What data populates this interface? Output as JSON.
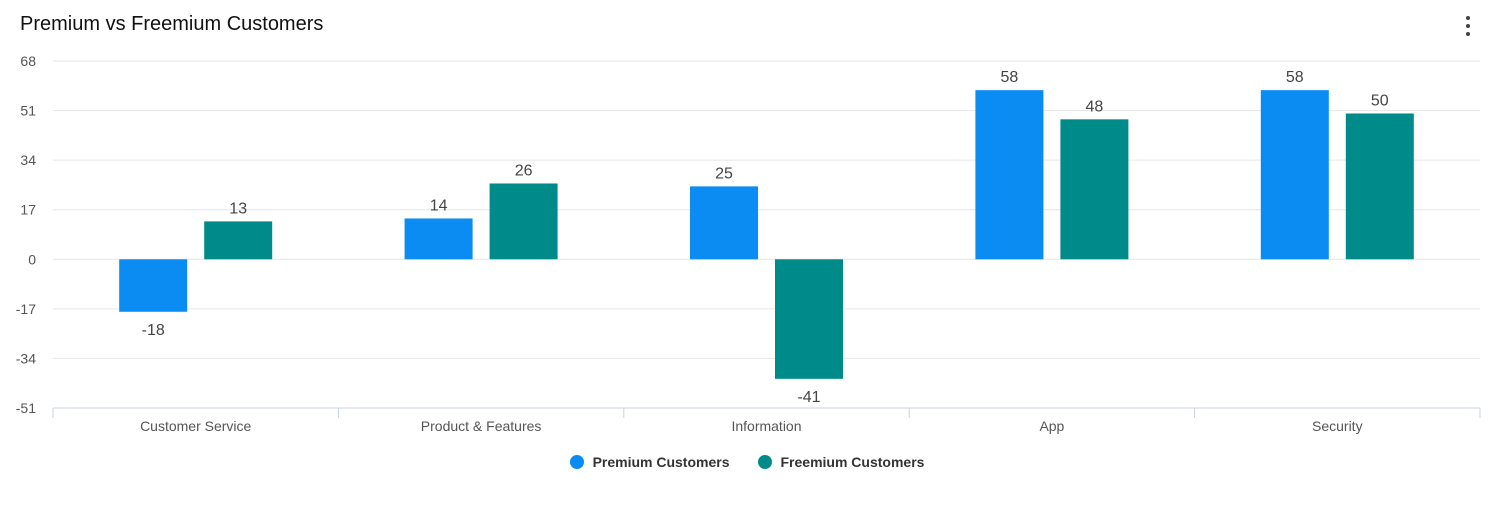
{
  "header": {
    "title": "Premium vs Freemium Customers",
    "menu_icon": "more-vertical-icon"
  },
  "chart_data": {
    "type": "bar",
    "title": "Premium vs Freemium Customers",
    "categories": [
      "Customer Service",
      "Product & Features",
      "Information",
      "App",
      "Security"
    ],
    "series": [
      {
        "name": "Premium Customers",
        "color": "#0a8cf2",
        "values": [
          -18,
          14,
          25,
          58,
          58
        ]
      },
      {
        "name": "Freemium Customers",
        "color": "#008b8b",
        "values": [
          13,
          26,
          -41,
          48,
          50
        ]
      }
    ],
    "yticks": [
      68,
      51,
      34,
      17,
      0,
      -17,
      -34,
      -51
    ],
    "ylim": [
      -51,
      68
    ],
    "xlabel": "",
    "ylabel": "",
    "grid": true,
    "legend_position": "bottom-center"
  }
}
